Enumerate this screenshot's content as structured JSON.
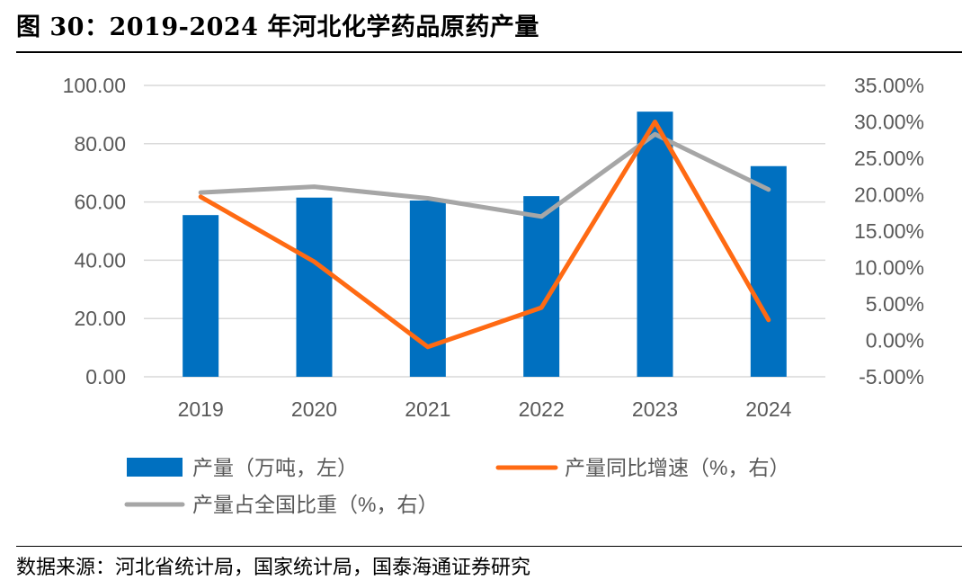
{
  "header": {
    "title": "图 30：2019-2024 年河北化学药品原药产量"
  },
  "footer": {
    "source": "数据来源：河北省统计局，国家统计局，国泰海通证券研究"
  },
  "chart_data": {
    "type": "bar",
    "title": "图 30：2019-2024 年河北化学药品原药产量",
    "categories": [
      "2019",
      "2020",
      "2021",
      "2022",
      "2023",
      "2024"
    ],
    "y_left": {
      "min": 0,
      "max": 100,
      "step": 20,
      "ticks": [
        "0.00",
        "20.00",
        "40.00",
        "60.00",
        "80.00",
        "100.00"
      ]
    },
    "y_right": {
      "min": -5,
      "max": 35,
      "step": 5,
      "ticks": [
        "-5.00%",
        "0.00%",
        "5.00%",
        "10.00%",
        "15.00%",
        "20.00%",
        "25.00%",
        "30.00%",
        "35.00%"
      ]
    },
    "gridlines": true,
    "legend_position": "bottom",
    "series": [
      {
        "name": "产量（万吨，左）",
        "type": "bar",
        "axis": "left",
        "color": "#0070C0",
        "values": [
          55.5,
          61.5,
          60.5,
          62.0,
          91.0,
          72.3
        ]
      },
      {
        "name": "产量同比增速（%，右）",
        "type": "line",
        "axis": "right",
        "color": "#FF6A13",
        "values": [
          19.7,
          10.8,
          -0.9,
          4.5,
          30.0,
          2.8
        ]
      },
      {
        "name": "产量占全国比重（%，右）",
        "type": "line",
        "axis": "right",
        "color": "#A6A6A6",
        "values": [
          20.3,
          21.1,
          19.5,
          17.0,
          28.3,
          20.7
        ]
      }
    ]
  }
}
